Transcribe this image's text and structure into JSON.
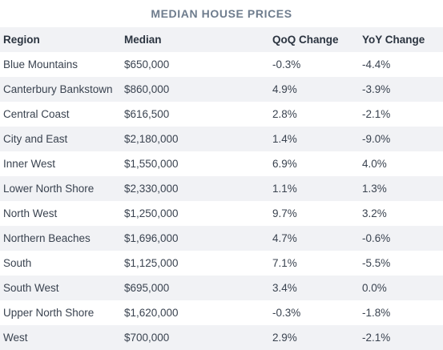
{
  "title": "MEDIAN HOUSE PRICES",
  "headers": [
    "Region",
    "Median",
    "QoQ Change",
    "YoY Change"
  ],
  "rows": [
    [
      "Blue Mountains",
      "$650,000",
      "-0.3%",
      "-4.4%"
    ],
    [
      "Canterbury Bankstown",
      "$860,000",
      "4.9%",
      "-3.9%"
    ],
    [
      "Central Coast",
      "$616,500",
      "2.8%",
      "-2.1%"
    ],
    [
      "City and East",
      "$2,180,000",
      "1.4%",
      "-9.0%"
    ],
    [
      "Inner West",
      "$1,550,000",
      "6.9%",
      "4.0%"
    ],
    [
      "Lower North Shore",
      "$2,330,000",
      "1.1%",
      "1.3%"
    ],
    [
      "North West",
      "$1,250,000",
      "9.7%",
      "3.2%"
    ],
    [
      "Northern Beaches",
      "$1,696,000",
      "4.7%",
      "-0.6%"
    ],
    [
      "South",
      "$1,125,000",
      "7.1%",
      "-5.5%"
    ],
    [
      "South West",
      "$695,000",
      "3.4%",
      "0.0%"
    ],
    [
      "Upper North Shore",
      "$1,620,000",
      "-0.3%",
      "-1.8%"
    ],
    [
      "West",
      "$700,000",
      "2.9%",
      "-2.1%"
    ]
  ]
}
